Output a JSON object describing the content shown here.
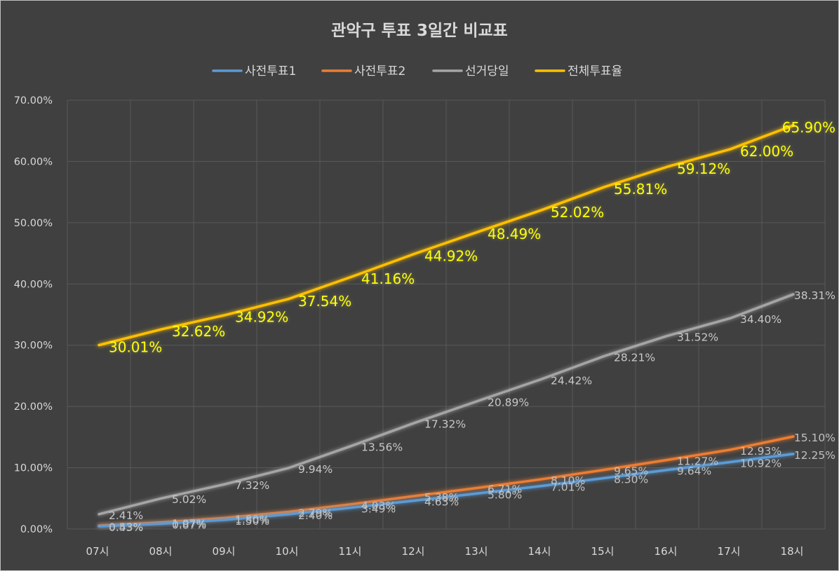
{
  "chart_data": {
    "type": "line",
    "title": "관악구 투표 3일간 비교표",
    "categories": [
      "07시",
      "08시",
      "09시",
      "10시",
      "11시",
      "12시",
      "13시",
      "14시",
      "15시",
      "16시",
      "17시",
      "18시"
    ],
    "ylim": [
      0,
      70
    ],
    "yticks": [
      "0.00%",
      "10.00%",
      "20.00%",
      "30.00%",
      "40.00%",
      "50.00%",
      "60.00%",
      "70.00%"
    ],
    "grid": true,
    "legend_position": "top",
    "series": [
      {
        "name": "사전투표1",
        "color": "#5b9bd5",
        "values": [
          0.43,
          0.87,
          1.5,
          2.4,
          3.49,
          4.63,
          5.8,
          7.01,
          8.3,
          9.64,
          10.92,
          12.25
        ],
        "labels": [
          "0.43%",
          "0.87%",
          "1.50%",
          "2.40%",
          "3.49%",
          "4.63%",
          "5.80%",
          "7.01%",
          "8.30%",
          "9.64%",
          "10.92%",
          "12.25%"
        ]
      },
      {
        "name": "사전투표2",
        "color": "#ed7d31",
        "values": [
          0.53,
          1.07,
          1.8,
          2.79,
          4.03,
          5.38,
          6.71,
          8.1,
          9.65,
          11.27,
          12.93,
          15.1
        ],
        "labels": [
          "0.53%",
          "1.07%",
          "1.80%",
          "2.79%",
          "4.03%",
          "5.38%",
          "6.71%",
          "8.10%",
          "9.65%",
          "11.27%",
          "12.93%",
          "15.10%"
        ]
      },
      {
        "name": "선거당일",
        "color": "#a5a5a5",
        "values": [
          2.41,
          5.02,
          7.32,
          9.94,
          13.56,
          17.32,
          20.89,
          24.42,
          28.21,
          31.52,
          34.4,
          38.31
        ],
        "labels": [
          "2.41%",
          "5.02%",
          "7.32%",
          "9.94%",
          "13.56%",
          "17.32%",
          "20.89%",
          "24.42%",
          "28.21%",
          "31.52%",
          "34.40%",
          "38.31%"
        ]
      },
      {
        "name": "전체투표율",
        "color": "#ffc000",
        "label_color": "#ffff00",
        "values": [
          30.01,
          32.62,
          34.92,
          37.54,
          41.16,
          44.92,
          48.49,
          52.02,
          55.81,
          59.12,
          62.0,
          65.9
        ],
        "labels": [
          "30.01%",
          "32.62%",
          "34.92%",
          "37.54%",
          "41.16%",
          "44.92%",
          "48.49%",
          "52.02%",
          "55.81%",
          "59.12%",
          "62.00%",
          "65.90%"
        ]
      }
    ]
  }
}
